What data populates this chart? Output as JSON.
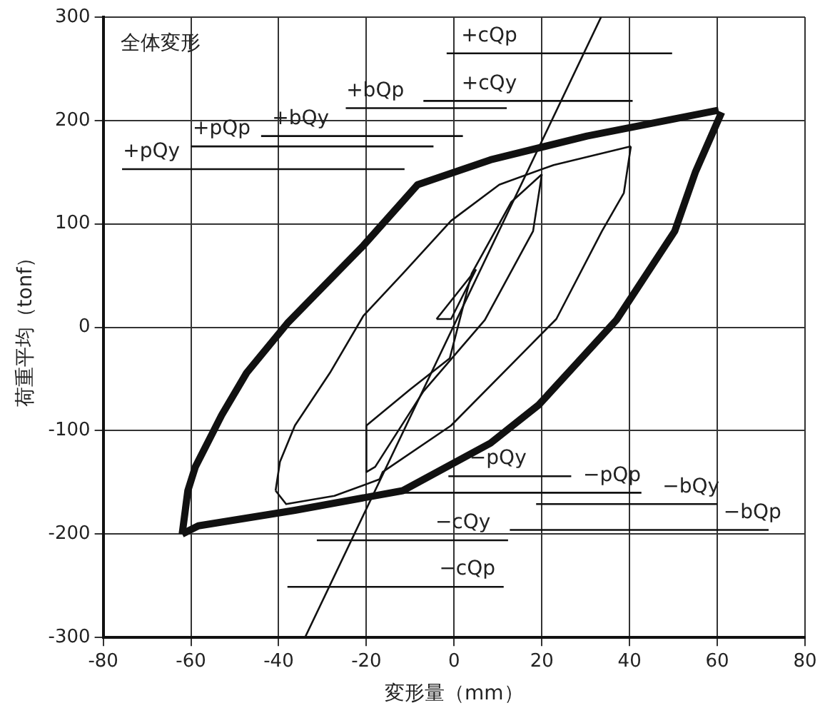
{
  "chart_data": {
    "type": "line",
    "xlabel": "変形量（mm）",
    "ylabel": "荷重平均（tonf）",
    "xlim": [
      -80,
      80
    ],
    "xticks": [
      -80,
      -60,
      -40,
      -20,
      0,
      20,
      40,
      60,
      80
    ],
    "ylim": [
      -300,
      300
    ],
    "yticks": [
      -300,
      -200,
      -100,
      0,
      100,
      200,
      300
    ],
    "grid": true,
    "legend": false,
    "marker": "none",
    "line_style": "solid",
    "series": [
      {
        "color": "#111111",
        "x": [
          -62,
          -60.7,
          -59,
          -53,
          -47.3,
          -38,
          -20.7,
          -8.3,
          8.3,
          30.3,
          60.3
        ],
        "values": [
          -200,
          -158,
          -135,
          -85,
          -44,
          4,
          79,
          138,
          162,
          185,
          210
        ]
      },
      {
        "color": "#111111",
        "x": [
          61,
          55,
          50.3,
          37,
          19.3,
          8.3,
          -11.7,
          -36.3,
          -58.3,
          -62
        ],
        "values": [
          208,
          150,
          93,
          7,
          -75,
          -112,
          -158,
          -177,
          -192,
          -200
        ]
      },
      {
        "color": "#111111",
        "x": [
          40.3,
          38.7,
          33.7,
          23.3,
          -0.7,
          -16.3,
          -17,
          -27.3,
          -38.3,
          -40.7
        ],
        "values": [
          175,
          130,
          93,
          8,
          -95,
          -140,
          -147,
          -163,
          -171,
          -158
        ]
      },
      {
        "color": "#111111",
        "x": [
          -40.7,
          -39.7,
          -36.3,
          -28.3,
          -20.7,
          -11.7,
          -0.7,
          10.3,
          22.7,
          40.3
        ],
        "values": [
          -158,
          -130,
          -95,
          -44,
          11,
          52,
          103,
          138,
          157,
          175
        ]
      },
      {
        "color": "#111111",
        "x": [
          20,
          18,
          7,
          -7,
          -18,
          -20,
          -20
        ],
        "values": [
          148,
          93,
          7,
          -62,
          -135,
          -140,
          -95
        ]
      },
      {
        "color": "#111111",
        "x": [
          -20,
          -10,
          -1,
          4,
          13,
          20
        ],
        "values": [
          -95,
          -60,
          -30,
          52,
          121,
          148
        ]
      },
      {
        "color": "#111111",
        "x": [
          5,
          -4
        ],
        "values": [
          56,
          8
        ]
      },
      {
        "color": "#111111",
        "x": [
          -4,
          -0.7,
          5
        ],
        "values": [
          8,
          8,
          56
        ]
      },
      {
        "color": "#111111",
        "x": [
          -34,
          33.5
        ],
        "values": [
          -300,
          300
        ]
      },
      {
        "color": "#111111",
        "x": [
          -1.7,
          49.7
        ],
        "values": [
          265,
          265
        ]
      },
      {
        "color": "#111111",
        "x": [
          -7,
          40.7
        ],
        "values": [
          219,
          219
        ]
      },
      {
        "color": "#111111",
        "x": [
          -24.7,
          12
        ],
        "values": [
          212,
          212
        ]
      },
      {
        "color": "#111111",
        "x": [
          -44,
          2
        ],
        "values": [
          185,
          185
        ]
      },
      {
        "color": "#111111",
        "x": [
          -60,
          -4.7
        ],
        "values": [
          175,
          175
        ]
      },
      {
        "color": "#111111",
        "x": [
          -75.7,
          -11.3
        ],
        "values": [
          153,
          153
        ]
      },
      {
        "color": "#111111",
        "x": [
          -1.3,
          26.7
        ],
        "values": [
          -144,
          -144
        ]
      },
      {
        "color": "#111111",
        "x": [
          -11.7,
          42.7
        ],
        "values": [
          -160,
          -160
        ]
      },
      {
        "color": "#111111",
        "x": [
          18.7,
          60
        ],
        "values": [
          -171,
          -171
        ]
      },
      {
        "color": "#111111",
        "x": [
          12.7,
          71.7
        ],
        "values": [
          -196,
          -196
        ]
      },
      {
        "color": "#111111",
        "x": [
          -31.3,
          12.3
        ],
        "values": [
          -206,
          -206
        ]
      },
      {
        "color": "#111111",
        "x": [
          -38,
          11.3
        ],
        "values": [
          -251,
          -251
        ]
      }
    ],
    "annotations": [
      "全体変形",
      {
        "text": "+cQp",
        "x": 8,
        "y": 265
      },
      {
        "text": "+cQy",
        "x": 8,
        "y": 219
      },
      {
        "text": "+bQp",
        "x": -18,
        "y": 212
      },
      {
        "text": "+bQy",
        "x": -35,
        "y": 185
      },
      {
        "text": "+pQp",
        "x": -53,
        "y": 175
      },
      {
        "text": "+pQy",
        "x": -69,
        "y": 153
      },
      {
        "text": "−pQy",
        "x": 10,
        "y": -144
      },
      {
        "text": "−pQp",
        "x": 36,
        "y": -160
      },
      {
        "text": "−bQy",
        "x": 54,
        "y": -171
      },
      {
        "text": "−bQp",
        "x": 68,
        "y": -196
      },
      {
        "text": "−cQy",
        "x": 2,
        "y": -206
      },
      {
        "text": "−cQp",
        "x": 3,
        "y": -251
      }
    ]
  }
}
